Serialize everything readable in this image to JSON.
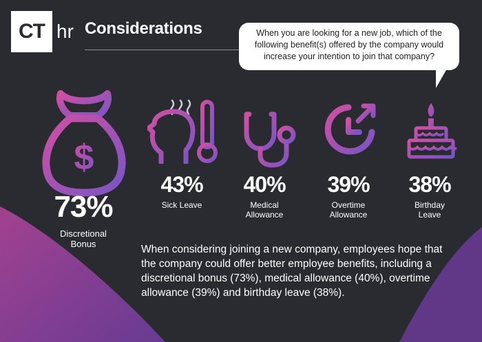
{
  "brand": {
    "logo_box": "CT",
    "logo_suffix": "hr"
  },
  "header": {
    "title": "Considerations"
  },
  "question": "When you are looking for a new job, which of the following benefit(s) offered by the company would increase your intention to join that company?",
  "benefits": [
    {
      "icon": "money-bag-icon",
      "percent": "73%",
      "label": "Discretional Bonus",
      "value": 73
    },
    {
      "icon": "sick-head-thermometer-icon",
      "percent": "43%",
      "label": "Sick Leave",
      "value": 43
    },
    {
      "icon": "stethoscope-icon",
      "percent": "40%",
      "label": "Medical Allowance",
      "value": 40
    },
    {
      "icon": "clock-arrow-icon",
      "percent": "39%",
      "label": "Overtime Allowance",
      "value": 39
    },
    {
      "icon": "birthday-cake-icon",
      "percent": "38%",
      "label": "Birthday Leave",
      "value": 38
    }
  ],
  "summary": "When considering joining a new company, employees hope that the company could offer better employee benefits, including a discretional bonus (73%), medical allowance (40%), overtime allowance (39%) and birthday leave (38%).",
  "colors": {
    "background": "#2a2a31",
    "gradient_start": "#c64aa6",
    "gradient_end": "#7b4fb8"
  }
}
